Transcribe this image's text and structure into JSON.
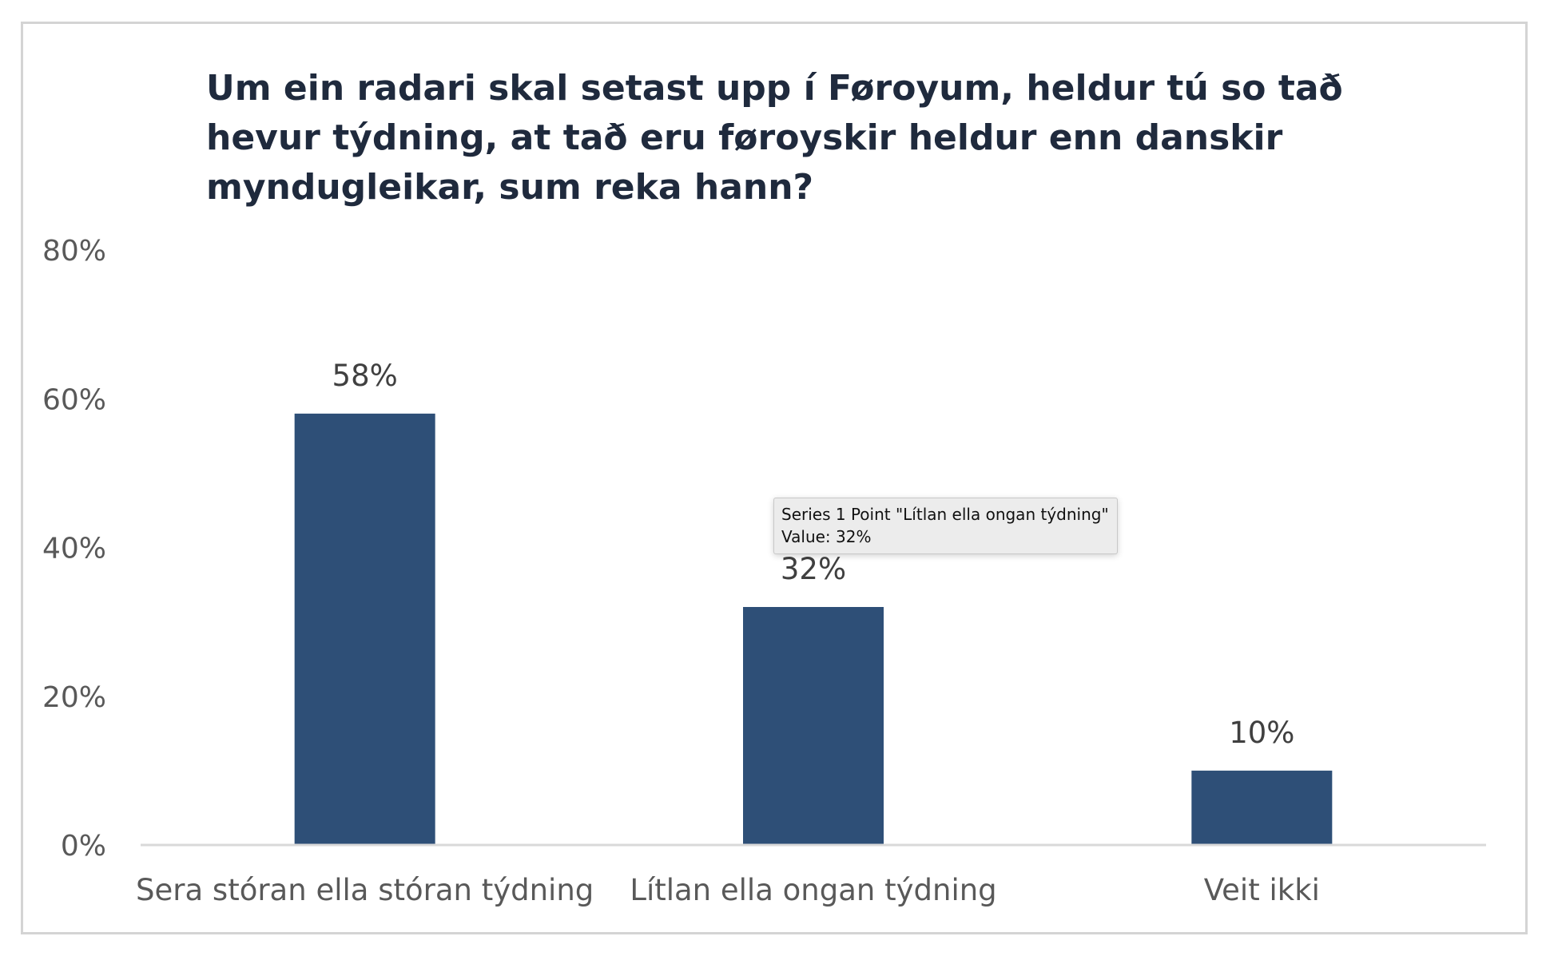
{
  "chart_data": {
    "type": "bar",
    "title": "Um ein radari skal setast upp í Føroyum, heldur tú so tað hevur týdning, at tað eru føroyskir heldur enn danskir myndugleikar, sum reka hann?",
    "categories": [
      "Sera stóran ella stóran týdning",
      "Lítlan ella ongan týdning",
      "Veit ikki"
    ],
    "series": [
      {
        "values": [
          58,
          32,
          10
        ],
        "color": "#2e4f77"
      }
    ],
    "data_labels": [
      "58%",
      "32%",
      "10%"
    ],
    "y_ticks": [
      "0%",
      "20%",
      "40%",
      "60%",
      "80%"
    ],
    "ylim": [
      0,
      80
    ],
    "xlabel": "",
    "ylabel": "",
    "grid": false,
    "legend": "none"
  },
  "tooltip": {
    "line1": "Series 1 Point \"Lítlan ella ongan týdning\"",
    "line2": "Value: 32%"
  }
}
